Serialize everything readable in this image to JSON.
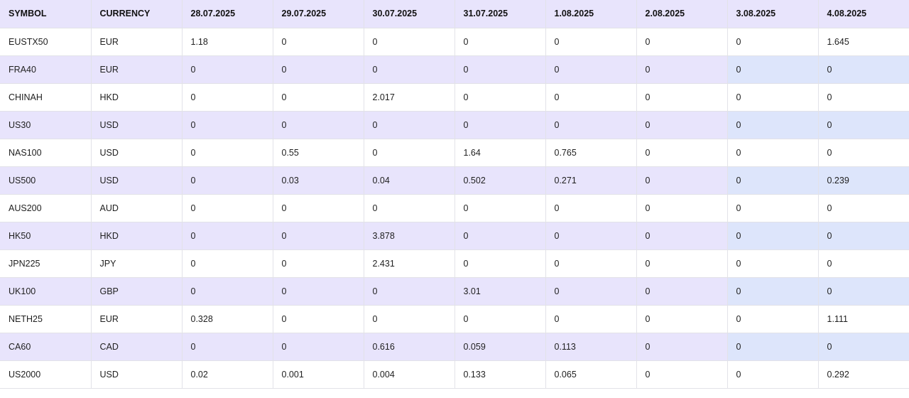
{
  "table": {
    "columns": [
      "SYMBOL",
      "CURRENCY",
      "28.07.2025",
      "29.07.2025",
      "30.07.2025",
      "31.07.2025",
      "1.08.2025",
      "2.08.2025",
      "3.08.2025",
      "4.08.2025"
    ],
    "rows": [
      [
        "EUSTX50",
        "EUR",
        "1.18",
        "0",
        "0",
        "0",
        "0",
        "0",
        "0",
        "1.645"
      ],
      [
        "FRA40",
        "EUR",
        "0",
        "0",
        "0",
        "0",
        "0",
        "0",
        "0",
        "0"
      ],
      [
        "CHINAH",
        "HKD",
        "0",
        "0",
        "2.017",
        "0",
        "0",
        "0",
        "0",
        "0"
      ],
      [
        "US30",
        "USD",
        "0",
        "0",
        "0",
        "0",
        "0",
        "0",
        "0",
        "0"
      ],
      [
        "NAS100",
        "USD",
        "0",
        "0.55",
        "0",
        "1.64",
        "0.765",
        "0",
        "0",
        "0"
      ],
      [
        "US500",
        "USD",
        "0",
        "0.03",
        "0.04",
        "0.502",
        "0.271",
        "0",
        "0",
        "0.239"
      ],
      [
        "AUS200",
        "AUD",
        "0",
        "0",
        "0",
        "0",
        "0",
        "0",
        "0",
        "0"
      ],
      [
        "HK50",
        "HKD",
        "0",
        "0",
        "3.878",
        "0",
        "0",
        "0",
        "0",
        "0"
      ],
      [
        "JPN225",
        "JPY",
        "0",
        "0",
        "2.431",
        "0",
        "0",
        "0",
        "0",
        "0"
      ],
      [
        "UK100",
        "GBP",
        "0",
        "0",
        "0",
        "3.01",
        "0",
        "0",
        "0",
        "0"
      ],
      [
        "NETH25",
        "EUR",
        "0.328",
        "0",
        "0",
        "0",
        "0",
        "0",
        "0",
        "1.111"
      ],
      [
        "CA60",
        "CAD",
        "0",
        "0",
        "0.616",
        "0.059",
        "0.113",
        "0",
        "0",
        "0"
      ],
      [
        "US2000",
        "USD",
        "0.02",
        "0.001",
        "0.004",
        "0.133",
        "0.065",
        "0",
        "0",
        "0.292"
      ]
    ]
  },
  "colors": {
    "header_bg": "#e8e4fc",
    "stripe_bg": "#e8e4fc",
    "stripe_tail_bg": "#dde5fb",
    "border": "#e2e2e8"
  }
}
